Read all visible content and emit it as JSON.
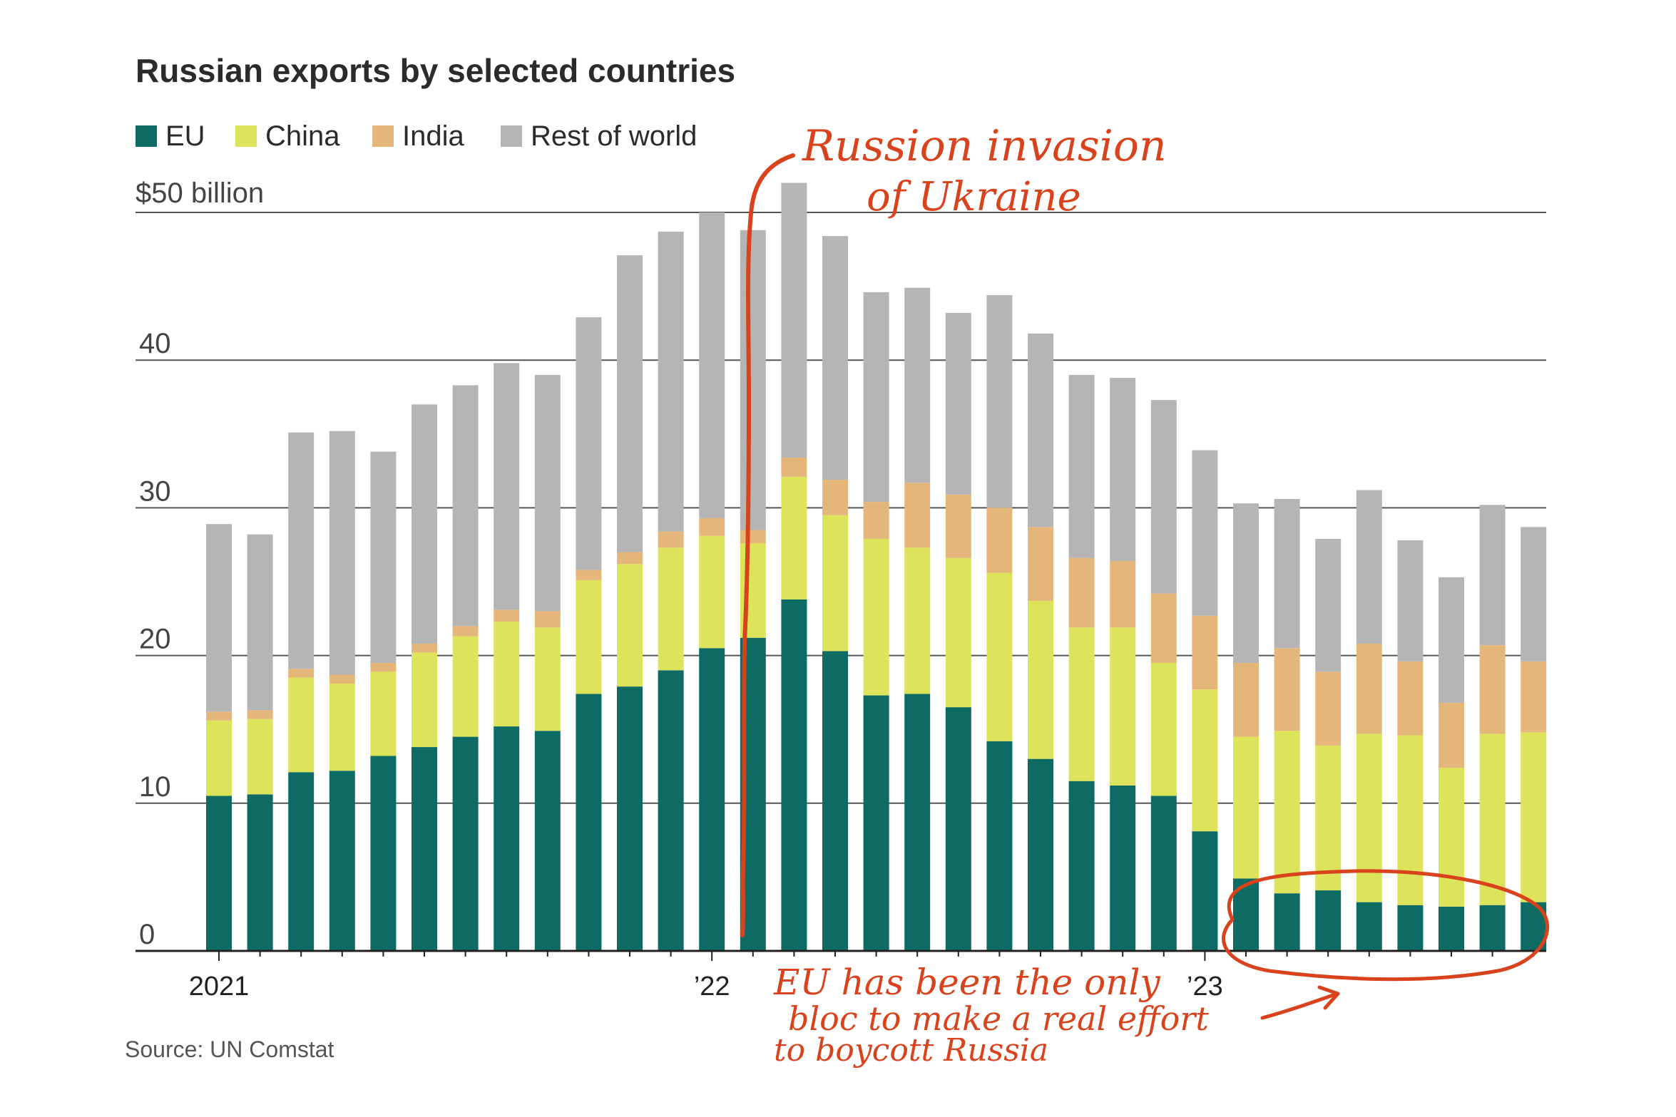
{
  "chart_data": {
    "type": "bar",
    "stacked": true,
    "title": "Russian exports by selected countries",
    "y_unit_label": "$50 billion",
    "ylim": [
      0,
      50
    ],
    "yticks": [
      0,
      10,
      20,
      30,
      40
    ],
    "grid": true,
    "legend_position": "top-left",
    "x_tick_labels": [
      "2021",
      "’22",
      "’23"
    ],
    "x_tick_positions": [
      0,
      12,
      24
    ],
    "series": [
      {
        "name": "EU",
        "color": "#0e6b64",
        "values": [
          10.5,
          10.6,
          12.1,
          12.2,
          13.2,
          13.8,
          14.5,
          15.2,
          14.9,
          17.4,
          17.9,
          19.0,
          20.5,
          21.2,
          23.8,
          20.3,
          17.3,
          17.4,
          16.5,
          14.2,
          13.0,
          11.5,
          11.2,
          10.5,
          8.1,
          4.9,
          3.9,
          4.1,
          3.3,
          3.1,
          3.0,
          3.1,
          3.3
        ]
      },
      {
        "name": "China",
        "color": "#dde35b",
        "values": [
          5.1,
          5.1,
          6.4,
          5.9,
          5.7,
          6.4,
          6.8,
          7.1,
          7.0,
          7.7,
          8.3,
          8.3,
          7.6,
          6.4,
          8.3,
          9.2,
          10.6,
          9.9,
          10.1,
          11.4,
          10.7,
          10.4,
          10.7,
          9.0,
          9.6,
          9.6,
          11.0,
          9.8,
          11.4,
          11.5,
          9.4,
          11.6,
          11.5
        ]
      },
      {
        "name": "India",
        "color": "#e5b679",
        "values": [
          0.6,
          0.6,
          0.6,
          0.6,
          0.6,
          0.6,
          0.7,
          0.8,
          1.1,
          0.7,
          0.8,
          1.1,
          1.2,
          0.9,
          1.3,
          2.4,
          2.5,
          4.4,
          4.3,
          4.4,
          5.0,
          4.7,
          4.5,
          4.7,
          5.0,
          5.0,
          5.6,
          5.0,
          6.1,
          5.0,
          4.4,
          6.0,
          4.8
        ]
      },
      {
        "name": "Rest of world",
        "color": "#b5b5b5",
        "values": [
          12.7,
          11.9,
          16.0,
          16.5,
          14.3,
          16.2,
          16.3,
          16.7,
          16.0,
          17.1,
          20.1,
          20.3,
          20.7,
          20.3,
          18.6,
          16.5,
          14.2,
          13.2,
          12.3,
          14.4,
          13.1,
          12.4,
          12.4,
          13.1,
          11.2,
          10.8,
          10.1,
          9.0,
          10.4,
          8.2,
          8.5,
          9.5,
          9.1
        ]
      }
    ],
    "source": "Source: UN Comstat",
    "annotations": [
      {
        "text_lines": [
          "Russion invasion",
          "of Ukraine"
        ],
        "kind": "handwritten-line"
      },
      {
        "text_lines": [
          "EU has been the only",
          "bloc to make a real effort",
          "to boycott Russia"
        ],
        "kind": "handwritten-circle"
      }
    ]
  }
}
